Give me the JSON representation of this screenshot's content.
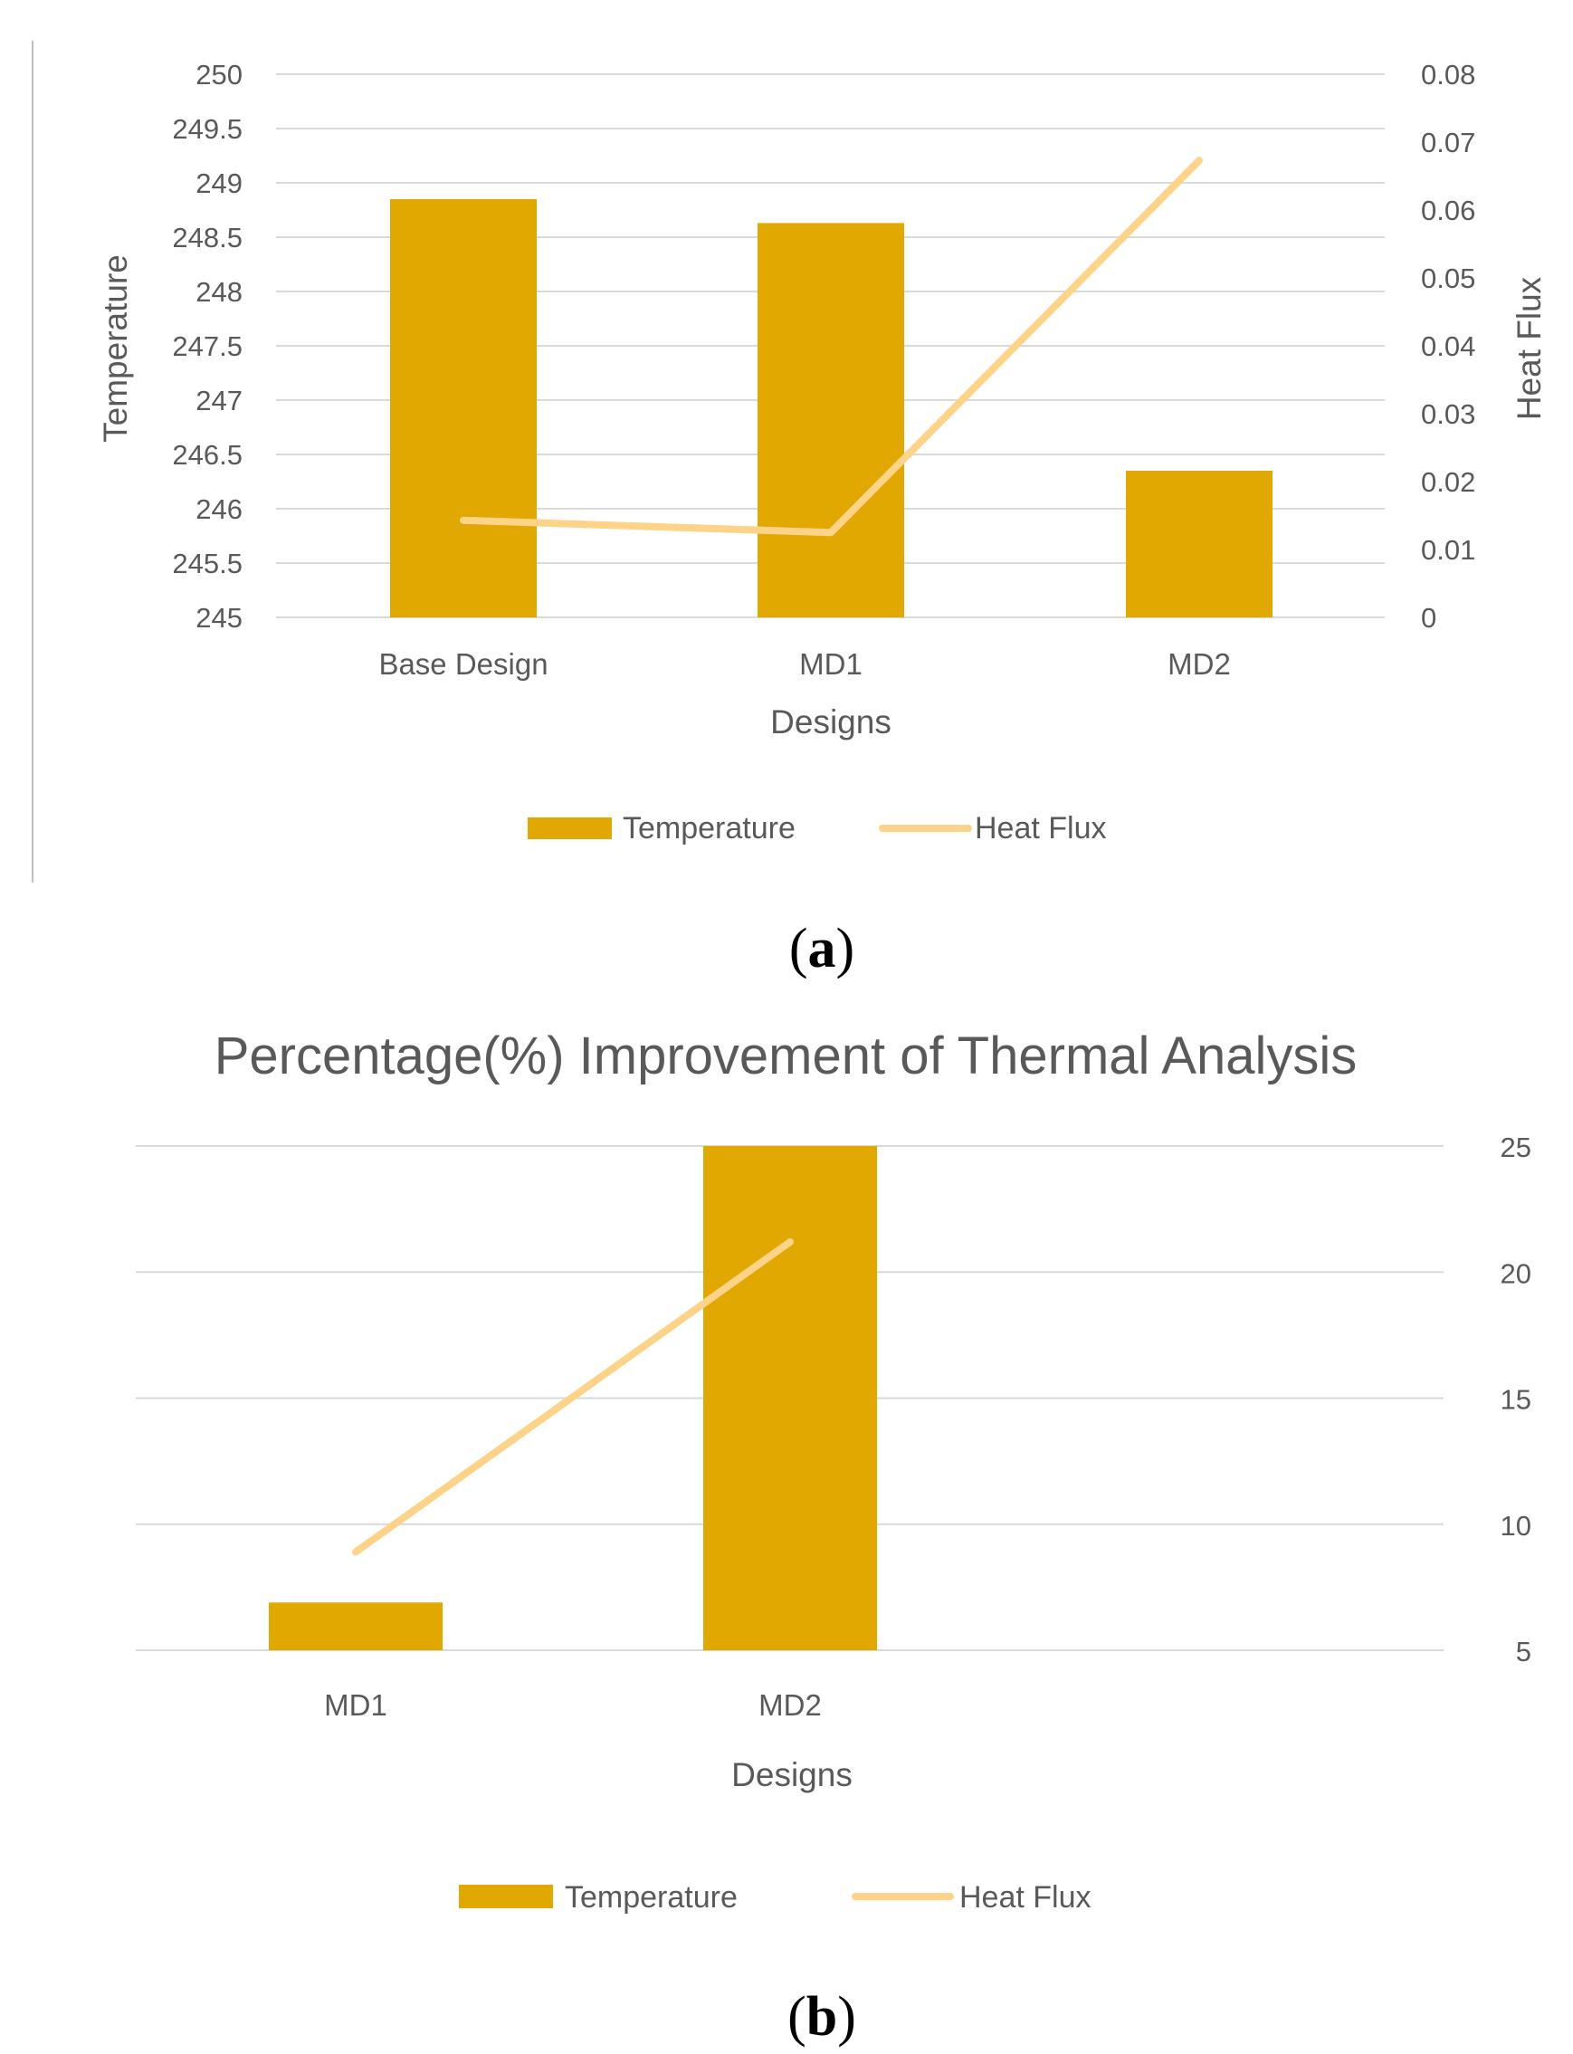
{
  "colors": {
    "bar": "#e0a800",
    "line": "#fdd38a",
    "grid": "#d9d9d9",
    "text": "#595959",
    "left_border": "#bfbfbf"
  },
  "chart_data": [
    {
      "id": "a",
      "type": "bar+line",
      "panel_label": {
        "open": "(",
        "letter": "a",
        "close": ")"
      },
      "title": "",
      "categories": [
        "Base Design",
        "MD1",
        "MD2"
      ],
      "series": [
        {
          "name": "Temperature",
          "type": "bar",
          "axis": "left",
          "values": [
            248.85,
            248.63,
            246.35
          ]
        },
        {
          "name": "Heat Flux",
          "type": "line",
          "axis": "right",
          "values": [
            0.0143,
            0.0125,
            0.0673
          ]
        }
      ],
      "xlabel": "Designs",
      "ylabel": "Temperature",
      "y2label": "Heat Flux",
      "ylim": [
        245,
        250
      ],
      "y2lim": [
        0,
        0.08
      ],
      "yticks": [
        "245",
        "245.5",
        "246",
        "246.5",
        "247",
        "247.5",
        "248",
        "248.5",
        "249",
        "249.5",
        "250"
      ],
      "y2ticks": [
        "0",
        "0.01",
        "0.02",
        "0.03",
        "0.04",
        "0.05",
        "0.06",
        "0.07",
        "0.08"
      ],
      "legend": {
        "position": "bottom",
        "entries": [
          "Temperature",
          "Heat Flux"
        ]
      },
      "grid": true
    },
    {
      "id": "b",
      "type": "bar+line",
      "panel_label": {
        "open": "(",
        "letter": "b",
        "close": ")"
      },
      "title": "Percentage(%) Improvement of Thermal Analysis",
      "categories": [
        "MD1",
        "MD2"
      ],
      "series": [
        {
          "name": "Temperature",
          "type": "bar",
          "axis": "left",
          "values": [
            0.09,
            0.95
          ]
        },
        {
          "name": "Heat Flux",
          "type": "line",
          "axis": "right",
          "values": [
            8.9,
            21.2
          ]
        }
      ],
      "xlabel": "Designs",
      "ylabel": "",
      "y2label": "",
      "ylim": [
        0,
        0.95
      ],
      "y2lim": [
        5,
        25
      ],
      "yticks": [],
      "y2ticks": [
        "5",
        "10",
        "15",
        "20",
        "25"
      ],
      "legend": {
        "position": "bottom",
        "entries": [
          "Temperature",
          "Heat Flux"
        ]
      },
      "grid": true
    }
  ]
}
